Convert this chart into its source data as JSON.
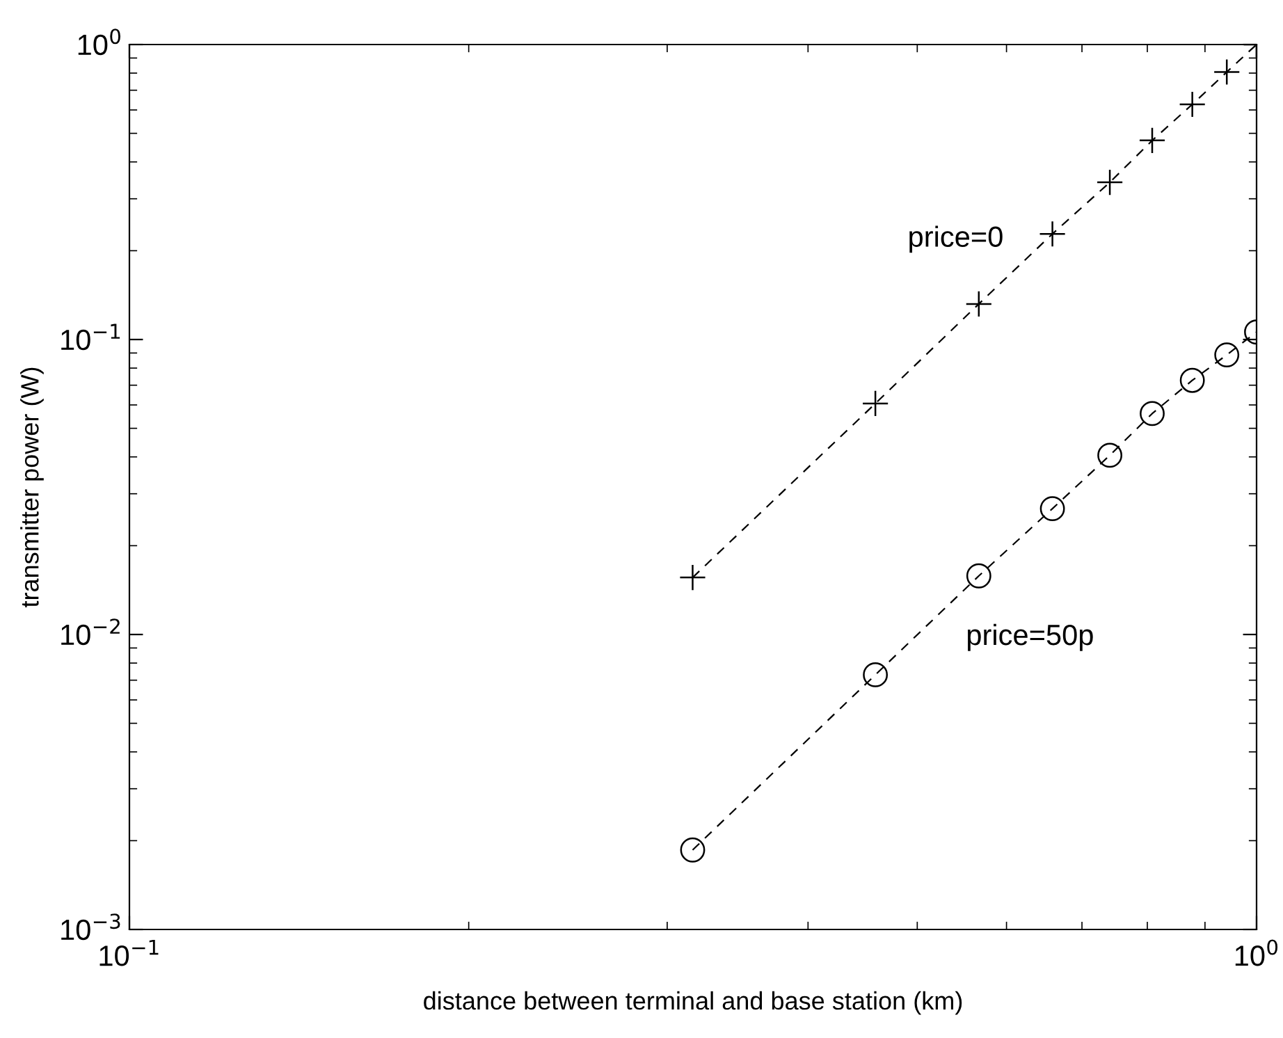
{
  "chart_data": {
    "type": "line",
    "xlabel": "distance between terminal and base station (km)",
    "ylabel": "transmitter power (W)",
    "log": "xy",
    "grid": false,
    "line_style": "dashed",
    "xlim": [
      0.1,
      1
    ],
    "ylim": [
      0.001,
      1
    ],
    "xticks": [
      {
        "value": 0.1,
        "label": "10$^{−1}$"
      },
      {
        "value": 1,
        "label": "10$^{0}$"
      }
    ],
    "yticks": [
      {
        "value": 0.001,
        "label": "10$^{−3}$"
      },
      {
        "value": 0.01,
        "label": "10$^{−2}$"
      },
      {
        "value": 0.1,
        "label": "10$^{−1}$"
      },
      {
        "value": 1,
        "label": "10$^{0}$"
      }
    ],
    "series": [
      {
        "color": "#000000",
        "marker": "cross",
        "x": [
          0.316,
          0.459,
          0.567,
          0.659,
          0.741,
          0.808,
          0.877,
          0.941,
          1.0
        ],
        "values": [
          0.0156,
          0.0607,
          0.132,
          0.228,
          0.341,
          0.473,
          0.627,
          0.807,
          1.0
        ]
      },
      {
        "color": "#000000",
        "marker": "circle",
        "x": [
          0.316,
          0.459,
          0.567,
          0.659,
          0.741,
          0.808,
          0.877,
          0.941,
          1.0
        ],
        "values": [
          0.00186,
          0.0073,
          0.0158,
          0.0267,
          0.0405,
          0.0561,
          0.0727,
          0.0887,
          0.106
        ]
      }
    ],
    "annotations": [
      "price=0",
      "price=50p"
    ]
  }
}
